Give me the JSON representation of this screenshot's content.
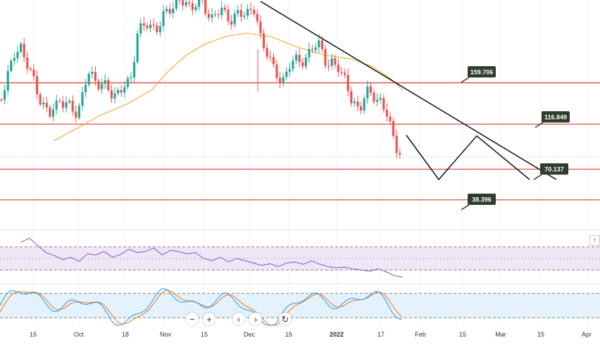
{
  "chart_data": [
    {
      "type": "candlestick",
      "title": "",
      "x_ticks": [
        "15",
        "Oct",
        "18",
        "Nov",
        "15",
        "Dec",
        "15",
        "2022",
        "17",
        "Feb",
        "15",
        "Mar",
        "15",
        "Apr"
      ],
      "levels": [
        {
          "value": 159.706,
          "label": "159.706"
        },
        {
          "value": 116.849,
          "label": "116.849"
        },
        {
          "value": 70.137,
          "label": "70.137"
        },
        {
          "value": 38.396,
          "label": "38.396"
        }
      ],
      "colors": {
        "up": "#26a69a",
        "down": "#ef5350",
        "level": "#e53935",
        "moving_average": "#f5a623",
        "trendline": "#111111",
        "label_bg": "#2e3d2d"
      },
      "price_scale": {
        "min": 15,
        "max": 245
      }
    },
    {
      "type": "line",
      "indicator": "RSI",
      "band": [
        30,
        70
      ],
      "ylim": [
        10,
        95
      ],
      "colors": {
        "line": "#7e57c2",
        "band": "#ede7f6"
      }
    },
    {
      "type": "line",
      "indicator": "Stochastic",
      "band": [
        20,
        80
      ],
      "ylim": [
        0,
        100
      ],
      "colors": {
        "k": "#2196f3",
        "d": "#ff6d00",
        "band": "#e3f2fd"
      }
    }
  ],
  "toolbar": {
    "zoom_out": "−",
    "zoom_in": "+",
    "scroll_left": "‹",
    "scroll_right": "›",
    "reset": "↻",
    "scroll_up": "↑"
  },
  "icons": [
    "zoom-out-icon",
    "zoom-in-icon",
    "chevron-left-icon",
    "chevron-right-icon",
    "reset-icon",
    "arrow-up-icon"
  ]
}
